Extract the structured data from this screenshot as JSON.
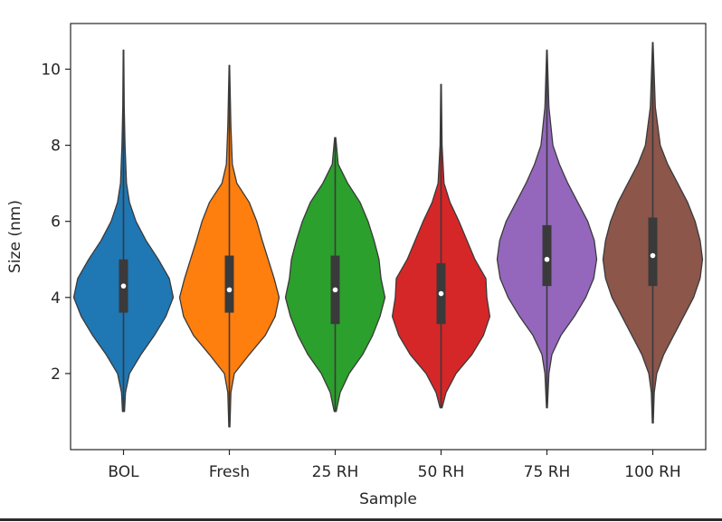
{
  "chart_data": {
    "type": "violin",
    "xlabel": "Sample",
    "ylabel": "Size (nm)",
    "ylim": [
      0,
      11.2
    ],
    "yticks": [
      2,
      4,
      6,
      8,
      10
    ],
    "grid": false,
    "legend": "none",
    "categories": [
      "BOL",
      "Fresh",
      "25 RH",
      "50 RH",
      "75 RH",
      "100 RH"
    ],
    "colors": [
      "#1f77b4",
      "#ff7f0e",
      "#2ca02c",
      "#d62728",
      "#9467bd",
      "#8c564b"
    ],
    "series": [
      {
        "min": 1.0,
        "max": 10.5,
        "q1": 3.6,
        "median": 4.3,
        "q3": 5.0,
        "density": [
          [
            1.0,
            0.02
          ],
          [
            1.5,
            0.04
          ],
          [
            2.0,
            0.12
          ],
          [
            2.5,
            0.35
          ],
          [
            3.0,
            0.62
          ],
          [
            3.5,
            0.85
          ],
          [
            4.0,
            1.0
          ],
          [
            4.5,
            0.92
          ],
          [
            5.0,
            0.7
          ],
          [
            5.5,
            0.45
          ],
          [
            6.0,
            0.25
          ],
          [
            6.5,
            0.12
          ],
          [
            7.0,
            0.06
          ],
          [
            8.0,
            0.03
          ],
          [
            9.0,
            0.015
          ],
          [
            10.5,
            0.005
          ]
        ]
      },
      {
        "min": 0.6,
        "max": 10.1,
        "q1": 3.6,
        "median": 4.2,
        "q3": 5.1,
        "density": [
          [
            0.6,
            0.01
          ],
          [
            1.5,
            0.03
          ],
          [
            2.0,
            0.1
          ],
          [
            2.5,
            0.4
          ],
          [
            3.0,
            0.72
          ],
          [
            3.5,
            0.92
          ],
          [
            4.0,
            1.0
          ],
          [
            4.5,
            0.9
          ],
          [
            5.0,
            0.78
          ],
          [
            5.5,
            0.66
          ],
          [
            6.0,
            0.55
          ],
          [
            6.5,
            0.4
          ],
          [
            7.0,
            0.15
          ],
          [
            7.5,
            0.06
          ],
          [
            8.5,
            0.03
          ],
          [
            10.1,
            0.005
          ]
        ]
      },
      {
        "min": 1.0,
        "max": 8.2,
        "q1": 3.3,
        "median": 4.2,
        "q3": 5.1,
        "density": [
          [
            1.0,
            0.02
          ],
          [
            1.5,
            0.1
          ],
          [
            2.0,
            0.28
          ],
          [
            2.5,
            0.55
          ],
          [
            3.0,
            0.75
          ],
          [
            3.5,
            0.9
          ],
          [
            4.0,
            1.0
          ],
          [
            4.5,
            0.92
          ],
          [
            5.0,
            0.88
          ],
          [
            5.5,
            0.78
          ],
          [
            6.0,
            0.66
          ],
          [
            6.5,
            0.5
          ],
          [
            7.0,
            0.25
          ],
          [
            7.5,
            0.06
          ],
          [
            8.2,
            0.01
          ]
        ]
      },
      {
        "min": 1.1,
        "max": 9.6,
        "q1": 3.3,
        "median": 4.1,
        "q3": 4.9,
        "density": [
          [
            1.1,
            0.02
          ],
          [
            1.5,
            0.1
          ],
          [
            2.0,
            0.3
          ],
          [
            2.5,
            0.62
          ],
          [
            3.0,
            0.85
          ],
          [
            3.5,
            0.98
          ],
          [
            4.0,
            0.92
          ],
          [
            4.5,
            0.9
          ],
          [
            5.0,
            0.68
          ],
          [
            5.5,
            0.52
          ],
          [
            6.0,
            0.36
          ],
          [
            6.5,
            0.18
          ],
          [
            7.0,
            0.06
          ],
          [
            8.0,
            0.02
          ],
          [
            9.6,
            0.005
          ]
        ]
      },
      {
        "min": 1.1,
        "max": 10.5,
        "q1": 4.3,
        "median": 5.0,
        "q3": 5.9,
        "density": [
          [
            1.1,
            0.01
          ],
          [
            2.0,
            0.04
          ],
          [
            2.5,
            0.1
          ],
          [
            3.0,
            0.28
          ],
          [
            3.5,
            0.55
          ],
          [
            4.0,
            0.78
          ],
          [
            4.5,
            0.94
          ],
          [
            5.0,
            1.0
          ],
          [
            5.5,
            0.95
          ],
          [
            6.0,
            0.82
          ],
          [
            6.5,
            0.62
          ],
          [
            7.0,
            0.42
          ],
          [
            7.5,
            0.25
          ],
          [
            8.0,
            0.12
          ],
          [
            9.0,
            0.04
          ],
          [
            10.5,
            0.005
          ]
        ]
      },
      {
        "min": 0.7,
        "max": 10.7,
        "q1": 4.3,
        "median": 5.1,
        "q3": 6.1,
        "density": [
          [
            0.7,
            0.01
          ],
          [
            1.5,
            0.03
          ],
          [
            2.0,
            0.08
          ],
          [
            2.5,
            0.22
          ],
          [
            3.0,
            0.42
          ],
          [
            3.5,
            0.62
          ],
          [
            4.0,
            0.82
          ],
          [
            4.5,
            0.95
          ],
          [
            5.0,
            1.0
          ],
          [
            5.5,
            0.95
          ],
          [
            6.0,
            0.85
          ],
          [
            6.5,
            0.7
          ],
          [
            7.0,
            0.5
          ],
          [
            7.5,
            0.3
          ],
          [
            8.0,
            0.15
          ],
          [
            9.0,
            0.05
          ],
          [
            10.7,
            0.005
          ]
        ]
      }
    ]
  }
}
